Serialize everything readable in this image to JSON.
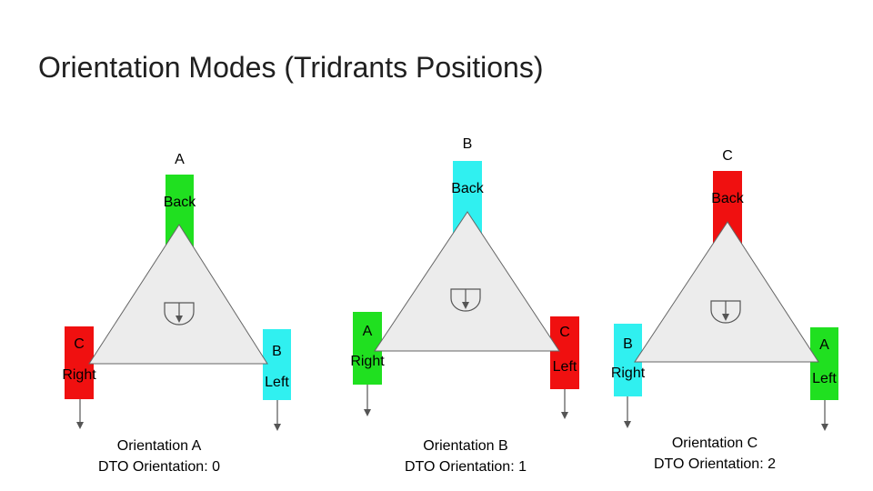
{
  "title": "Orientation Modes (Tridrants Positions)",
  "colors": {
    "green": "#20e020",
    "cyan": "#30f0f0",
    "red": "#f01010",
    "triangle_fill": "#ececec",
    "triangle_stroke": "#666666"
  },
  "diagrams": [
    {
      "name": "orientation-a",
      "caption_line1": "Orientation A",
      "caption_line2": "DTO Orientation: 0",
      "back": {
        "letter": "A",
        "label": "Back",
        "color": "green"
      },
      "right": {
        "letter": "C",
        "label": "Right",
        "color": "red"
      },
      "left": {
        "letter": "B",
        "label": "Left",
        "color": "cyan"
      }
    },
    {
      "name": "orientation-b",
      "caption_line1": "Orientation B",
      "caption_line2": "DTO Orientation: 1",
      "back": {
        "letter": "B",
        "label": "Back",
        "color": "cyan"
      },
      "right": {
        "letter": "A",
        "label": "Right",
        "color": "green"
      },
      "left": {
        "letter": "C",
        "label": "Left",
        "color": "red"
      }
    },
    {
      "name": "orientation-c",
      "caption_line1": "Orientation C",
      "caption_line2": "DTO Orientation: 2",
      "back": {
        "letter": "C",
        "label": "Back",
        "color": "red"
      },
      "right": {
        "letter": "B",
        "label": "Right",
        "color": "cyan"
      },
      "left": {
        "letter": "A",
        "label": "Left",
        "color": "green"
      }
    }
  ]
}
